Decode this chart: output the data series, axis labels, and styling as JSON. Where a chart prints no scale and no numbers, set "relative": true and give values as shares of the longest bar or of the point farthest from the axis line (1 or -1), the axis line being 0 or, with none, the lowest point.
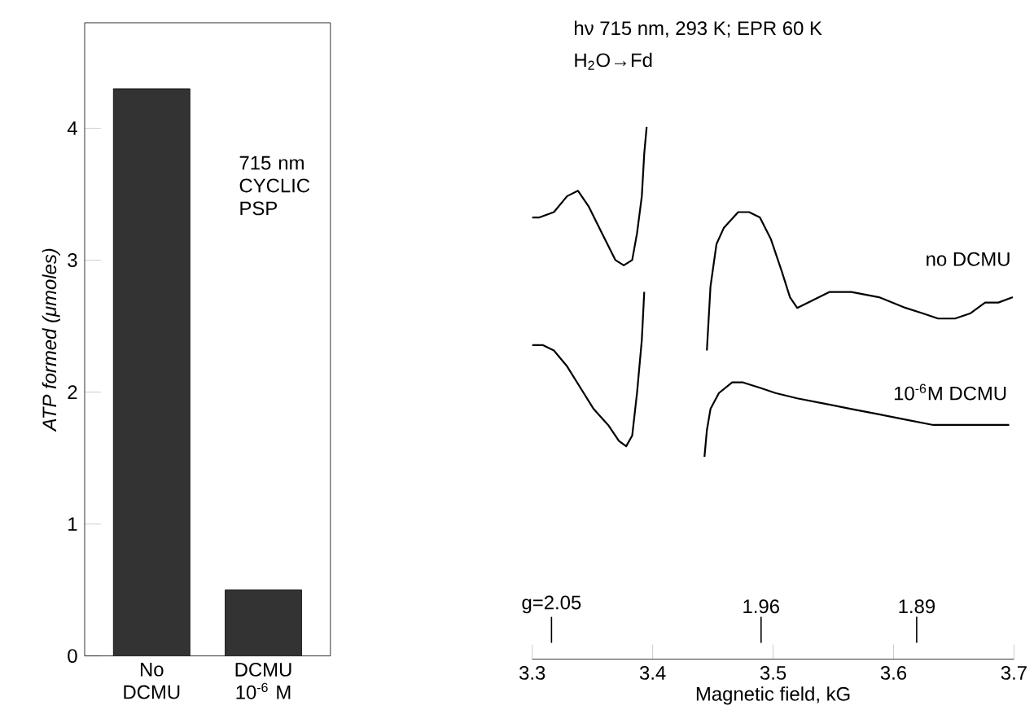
{
  "chart_data": [
    {
      "type": "bar",
      "categories": [
        "No DCMU",
        "DCMU 10$^{-6}$ M"
      ],
      "values": [
        4.3,
        0.5
      ],
      "color": "#333333",
      "ylabel": "ATP formed (μmoles)",
      "ylim": [
        0,
        4.8
      ],
      "yticks": [
        0,
        1,
        2,
        3,
        4
      ],
      "annotations": [
        "715 nm CYCLIC PSP"
      ]
    },
    {
      "type": "line",
      "title": "hν 715 nm, 293 K; EPR 60 K",
      "subtitle": "H$_{2}$O→Fd",
      "xlabel": "Magnetic field, kG",
      "xlim": [
        3.3,
        3.7
      ],
      "xticks": [
        3.3,
        3.4,
        3.5,
        3.6,
        3.7
      ],
      "relative": true,
      "annotations": [
        "g=2.05",
        "1.96",
        "1.89"
      ],
      "series": [
        {
          "name": "no DCMU",
          "color": "#000000",
          "x": [
            3.3,
            3.306,
            3.318,
            3.329,
            3.338,
            3.347,
            3.358,
            3.369,
            3.376,
            3.383,
            3.387,
            3.391,
            3.393,
            3.395,
            3.42,
            3.445,
            3.448,
            3.453,
            3.459,
            3.471,
            3.48,
            3.489,
            3.498,
            3.507,
            3.514,
            3.52,
            3.529,
            3.547,
            3.565,
            3.588,
            3.61,
            3.624,
            3.637,
            3.651,
            3.664,
            3.676,
            3.687,
            3.699
          ],
          "values": [
            0.83,
            0.83,
            0.84,
            0.87,
            0.88,
            0.85,
            0.8,
            0.75,
            0.74,
            0.75,
            0.8,
            0.87,
            0.95,
            1.0,
            null,
            0.58,
            0.7,
            0.78,
            0.81,
            0.84,
            0.84,
            0.83,
            0.79,
            0.73,
            0.68,
            0.66,
            0.67,
            0.69,
            0.69,
            0.68,
            0.66,
            0.65,
            0.64,
            0.64,
            0.65,
            0.67,
            0.67,
            0.68
          ]
        },
        {
          "name": "10$^{-6}$M DCMU",
          "color": "#000000",
          "x": [
            3.3,
            3.309,
            3.318,
            3.329,
            3.34,
            3.351,
            3.363,
            3.372,
            3.378,
            3.383,
            3.387,
            3.391,
            3.393,
            3.42,
            3.443,
            3.445,
            3.448,
            3.455,
            3.466,
            3.475,
            3.489,
            3.502,
            3.52,
            3.543,
            3.565,
            3.588,
            3.61,
            3.633,
            3.655,
            3.678,
            3.696
          ],
          "values": [
            0.59,
            0.59,
            0.58,
            0.55,
            0.51,
            0.47,
            0.44,
            0.41,
            0.4,
            0.42,
            0.5,
            0.6,
            0.69,
            null,
            0.38,
            0.43,
            0.47,
            0.5,
            0.52,
            0.52,
            0.51,
            0.5,
            0.49,
            0.48,
            0.47,
            0.46,
            0.45,
            0.44,
            0.44,
            0.44,
            0.44
          ]
        }
      ]
    }
  ]
}
